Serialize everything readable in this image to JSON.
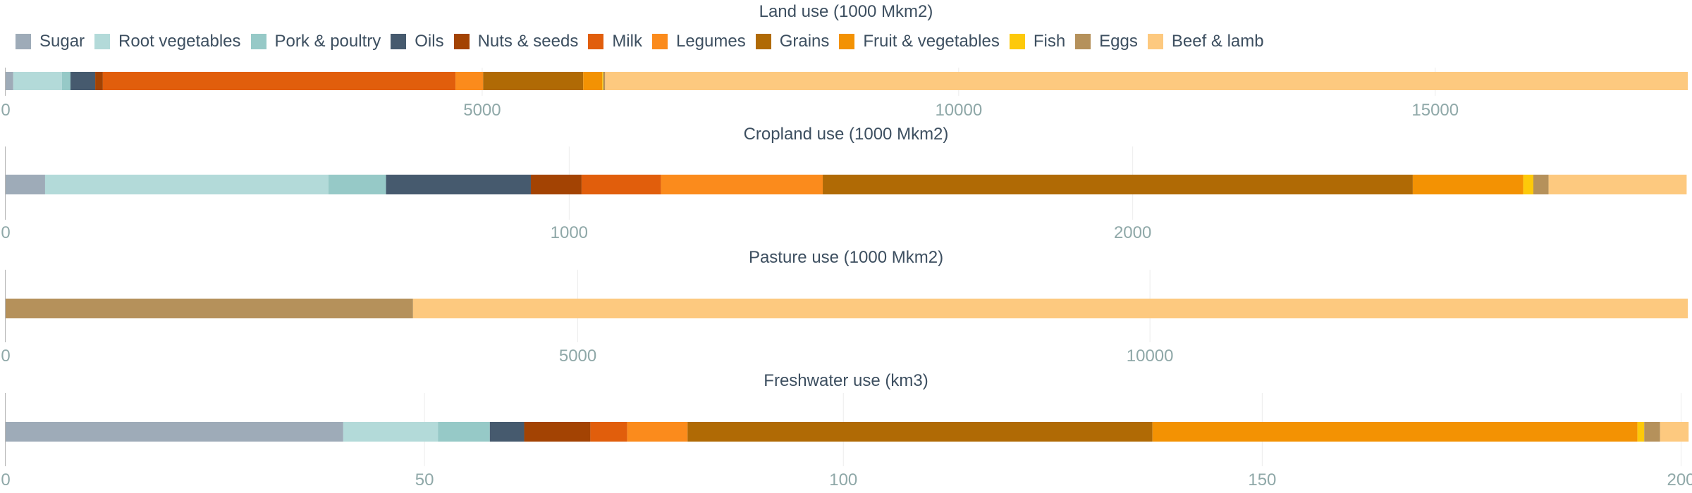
{
  "legend": {
    "placement": "top-left",
    "items": [
      {
        "label": "Sugar",
        "color": "#9eabb8"
      },
      {
        "label": "Root vegetables",
        "color": "#b3dad9"
      },
      {
        "label": "Pork & poultry",
        "color": "#96c9c7"
      },
      {
        "label": "Oils",
        "color": "#465a6e"
      },
      {
        "label": "Nuts & seeds",
        "color": "#a34303"
      },
      {
        "label": "Milk",
        "color": "#e15e0c"
      },
      {
        "label": "Legumes",
        "color": "#fb8b1c"
      },
      {
        "label": "Grains",
        "color": "#b06a05"
      },
      {
        "label": "Fruit & vegetables",
        "color": "#f39203"
      },
      {
        "label": "Fish",
        "color": "#fdc90a"
      },
      {
        "label": "Eggs",
        "color": "#b5915b"
      },
      {
        "label": "Beef & lamb",
        "color": "#fdc97f"
      }
    ]
  },
  "chart_data": [
    {
      "type": "bar",
      "orientation": "horizontal",
      "stacked": true,
      "title": "Land use (1000 Mkm2)",
      "xlim": [
        0,
        17650
      ],
      "ticks": [
        0,
        5000,
        10000,
        15000
      ],
      "tick_labels": [
        "0",
        "5000",
        "10000",
        "15000"
      ],
      "grid": true,
      "series": [
        {
          "name": "Sugar",
          "values": [
            80
          ]
        },
        {
          "name": "Root vegetables",
          "values": [
            510
          ]
        },
        {
          "name": "Pork & poultry",
          "values": [
            90
          ]
        },
        {
          "name": "Oils",
          "values": [
            260
          ]
        },
        {
          "name": "Nuts & seeds",
          "values": [
            80
          ]
        },
        {
          "name": "Milk",
          "values": [
            3700
          ]
        },
        {
          "name": "Legumes",
          "values": [
            290
          ]
        },
        {
          "name": "Grains",
          "values": [
            1050
          ]
        },
        {
          "name": "Fruit & vegetables",
          "values": [
            200
          ]
        },
        {
          "name": "Fish",
          "values": [
            10
          ]
        },
        {
          "name": "Eggs",
          "values": [
            20
          ]
        },
        {
          "name": "Beef & lamb",
          "values": [
            11360
          ]
        }
      ]
    },
    {
      "type": "bar",
      "orientation": "horizontal",
      "stacked": true,
      "title": "Cropland use (1000 Mkm2)",
      "xlim": [
        0,
        2985
      ],
      "ticks": [
        0,
        1000,
        2000
      ],
      "tick_labels": [
        "0",
        "1000",
        "2000"
      ],
      "grid": true,
      "series": [
        {
          "name": "Sugar",
          "values": [
            70
          ]
        },
        {
          "name": "Root vegetables",
          "values": [
            503
          ]
        },
        {
          "name": "Pork & poultry",
          "values": [
            102
          ]
        },
        {
          "name": "Oils",
          "values": [
            257
          ]
        },
        {
          "name": "Nuts & seeds",
          "values": [
            90
          ]
        },
        {
          "name": "Milk",
          "values": [
            141
          ]
        },
        {
          "name": "Legumes",
          "values": [
            287
          ]
        },
        {
          "name": "Grains",
          "values": [
            1047
          ]
        },
        {
          "name": "Fruit & vegetables",
          "values": [
            196
          ]
        },
        {
          "name": "Fish",
          "values": [
            18
          ]
        },
        {
          "name": "Eggs",
          "values": [
            27
          ]
        },
        {
          "name": "Beef & lamb",
          "values": [
            245
          ]
        }
      ]
    },
    {
      "type": "bar",
      "orientation": "horizontal",
      "stacked": true,
      "title": "Pasture use (1000 Mkm2)",
      "xlim": [
        0,
        14700
      ],
      "ticks": [
        0,
        5000,
        10000
      ],
      "tick_labels": [
        "0",
        "5000",
        "10000"
      ],
      "grid": true,
      "series": [
        {
          "name": "Sugar",
          "values": [
            0
          ]
        },
        {
          "name": "Root vegetables",
          "values": [
            0
          ]
        },
        {
          "name": "Pork & poultry",
          "values": [
            0
          ]
        },
        {
          "name": "Oils",
          "values": [
            0
          ]
        },
        {
          "name": "Nuts & seeds",
          "values": [
            0
          ]
        },
        {
          "name": "Milk",
          "values": [
            0
          ]
        },
        {
          "name": "Legumes",
          "values": [
            0
          ]
        },
        {
          "name": "Grains",
          "values": [
            0
          ]
        },
        {
          "name": "Fruit & vegetables",
          "values": [
            0
          ]
        },
        {
          "name": "Fish",
          "values": [
            0
          ]
        },
        {
          "name": "Eggs",
          "values": [
            3560
          ]
        },
        {
          "name": "Beef & lamb",
          "values": [
            11140
          ]
        }
      ]
    },
    {
      "type": "bar",
      "orientation": "horizontal",
      "stacked": true,
      "title": "Freshwater use (km3)",
      "xlim": [
        0,
        200.8
      ],
      "ticks": [
        0,
        50,
        100,
        150,
        200
      ],
      "tick_labels": [
        "0",
        "50",
        "100",
        "150",
        "200"
      ],
      "grid": true,
      "series": [
        {
          "name": "Sugar",
          "values": [
            40.3
          ]
        },
        {
          "name": "Root vegetables",
          "values": [
            11.3
          ]
        },
        {
          "name": "Pork & poultry",
          "values": [
            6.2
          ]
        },
        {
          "name": "Oils",
          "values": [
            4.1
          ]
        },
        {
          "name": "Nuts & seeds",
          "values": [
            7.9
          ]
        },
        {
          "name": "Milk",
          "values": [
            4.4
          ]
        },
        {
          "name": "Legumes",
          "values": [
            7.2
          ]
        },
        {
          "name": "Grains",
          "values": [
            55.5
          ]
        },
        {
          "name": "Fruit & vegetables",
          "values": [
            57.9
          ]
        },
        {
          "name": "Fish",
          "values": [
            0.8
          ]
        },
        {
          "name": "Eggs",
          "values": [
            1.9
          ]
        },
        {
          "name": "Beef & lamb",
          "values": [
            3.4
          ]
        }
      ]
    }
  ]
}
